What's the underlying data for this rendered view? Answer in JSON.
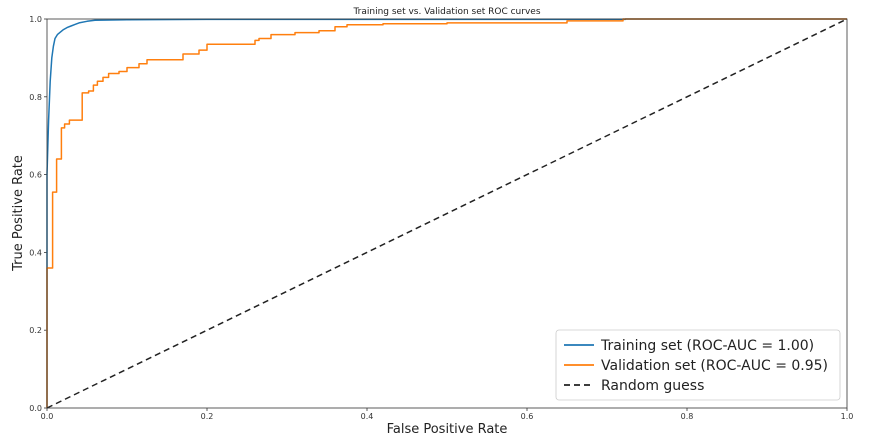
{
  "chart_data": {
    "type": "line",
    "title": "Training set vs. Validation set ROC curves",
    "xlabel": "False Positive Rate",
    "ylabel": "True Positive Rate",
    "xlim": [
      0.0,
      1.0
    ],
    "ylim": [
      0.0,
      1.0
    ],
    "xticks": [
      "0.0",
      "0.2",
      "0.4",
      "0.6",
      "0.8",
      "1.0"
    ],
    "yticks": [
      "0.0",
      "0.2",
      "0.4",
      "0.6",
      "0.8",
      "1.0"
    ],
    "grid": false,
    "legend_position": "lower-right",
    "series": [
      {
        "name": "Training set (ROC-AUC = 1.00)",
        "color": "#1f77b4",
        "style": "solid",
        "x": [
          0.0,
          0.0,
          0.002,
          0.004,
          0.006,
          0.008,
          0.01,
          0.013,
          0.016,
          0.02,
          0.025,
          0.03,
          0.035,
          0.04,
          0.05,
          0.06,
          0.1,
          0.2,
          0.4,
          0.6,
          0.723,
          0.723,
          1.0
        ],
        "y": [
          0.0,
          0.6,
          0.74,
          0.84,
          0.9,
          0.93,
          0.95,
          0.96,
          0.965,
          0.972,
          0.978,
          0.982,
          0.986,
          0.99,
          0.994,
          0.997,
          0.998,
          0.999,
          0.999,
          0.999,
          0.999,
          1.0,
          1.0
        ]
      },
      {
        "name": "Validation set (ROC-AUC = 0.95)",
        "color": "#ff7f0e",
        "style": "step",
        "x": [
          0.0,
          0.0,
          0.007,
          0.007,
          0.012,
          0.012,
          0.018,
          0.018,
          0.022,
          0.022,
          0.028,
          0.028,
          0.044,
          0.044,
          0.052,
          0.052,
          0.058,
          0.058,
          0.063,
          0.063,
          0.07,
          0.07,
          0.077,
          0.077,
          0.09,
          0.09,
          0.1,
          0.1,
          0.115,
          0.115,
          0.125,
          0.125,
          0.17,
          0.17,
          0.19,
          0.19,
          0.2,
          0.2,
          0.26,
          0.26,
          0.265,
          0.265,
          0.28,
          0.28,
          0.31,
          0.31,
          0.34,
          0.34,
          0.36,
          0.36,
          0.375,
          0.375,
          0.42,
          0.42,
          0.5,
          0.5,
          0.62,
          0.62,
          0.65,
          0.65,
          0.72,
          0.72,
          1.0
        ],
        "y": [
          0.0,
          0.36,
          0.36,
          0.555,
          0.555,
          0.64,
          0.64,
          0.72,
          0.72,
          0.73,
          0.73,
          0.74,
          0.74,
          0.81,
          0.81,
          0.815,
          0.815,
          0.83,
          0.83,
          0.84,
          0.84,
          0.85,
          0.85,
          0.86,
          0.86,
          0.865,
          0.865,
          0.875,
          0.875,
          0.885,
          0.885,
          0.895,
          0.895,
          0.91,
          0.91,
          0.92,
          0.92,
          0.935,
          0.935,
          0.945,
          0.945,
          0.95,
          0.95,
          0.96,
          0.96,
          0.965,
          0.965,
          0.97,
          0.97,
          0.98,
          0.98,
          0.985,
          0.985,
          0.988,
          0.988,
          0.99,
          0.99,
          0.99,
          0.99,
          0.995,
          0.995,
          1.0,
          1.0
        ]
      },
      {
        "name": "Random guess",
        "color": "#222222",
        "style": "dashed",
        "x": [
          0.0,
          1.0
        ],
        "y": [
          0.0,
          1.0
        ]
      }
    ]
  }
}
